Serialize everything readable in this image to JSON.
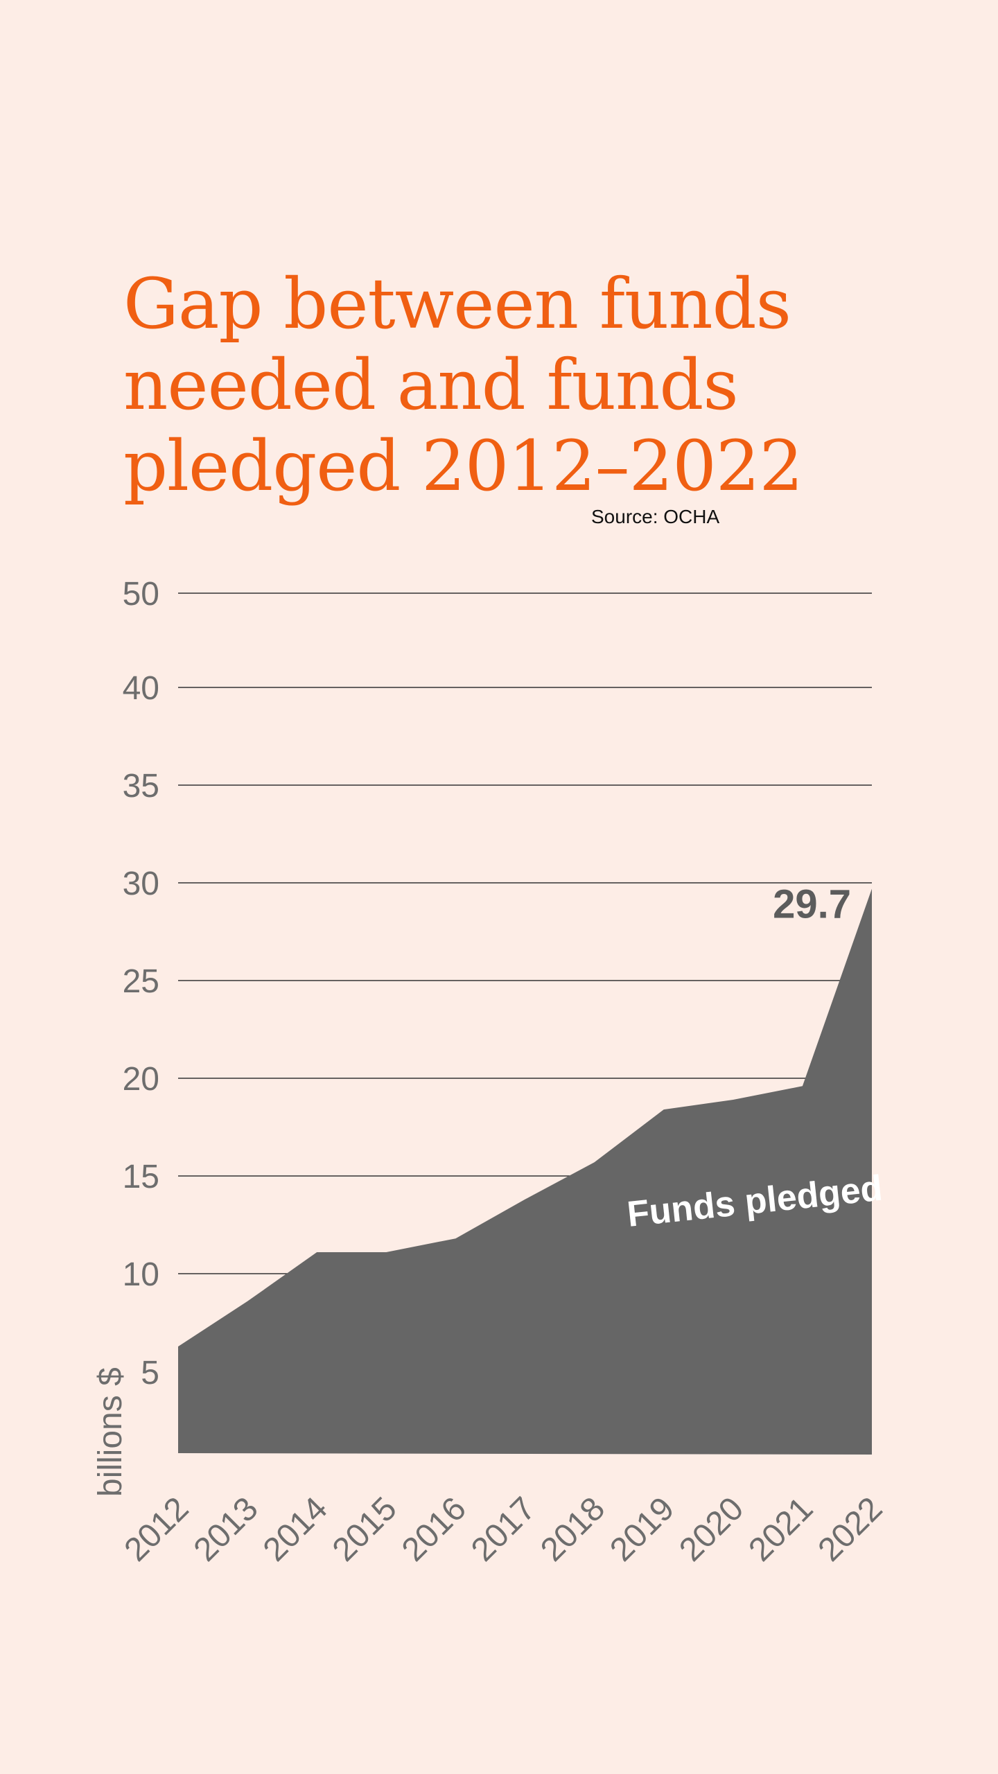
{
  "title": "Gap between funds needed and funds pledged 2012–2022",
  "source": "Source: OCHA",
  "colors": {
    "accent": "#f05f12",
    "area": "#666666",
    "grid": "#333333",
    "tick": "#6d6d6d",
    "background": "#fdede6"
  },
  "chart_data": {
    "type": "area",
    "title": "Gap between funds needed and funds pledged 2012–2022",
    "ylabel": "billions $",
    "xlabel": "",
    "x": [
      "2012",
      "2013",
      "2014",
      "2015",
      "2016",
      "2017",
      "2018",
      "2019",
      "2020",
      "2021",
      "2022"
    ],
    "yticks": [
      "5",
      "10",
      "15",
      "20",
      "25",
      "30",
      "35",
      "40",
      "50"
    ],
    "grid": true,
    "highlight_x": "2022",
    "series": [
      {
        "name": "Funds pledged",
        "values": [
          6.3,
          8.6,
          11.1,
          11.1,
          11.8,
          13.8,
          15.7,
          18.4,
          18.9,
          19.6,
          29.7
        ]
      }
    ],
    "annotations": [
      {
        "x": "2022",
        "text": "29.7"
      }
    ]
  }
}
